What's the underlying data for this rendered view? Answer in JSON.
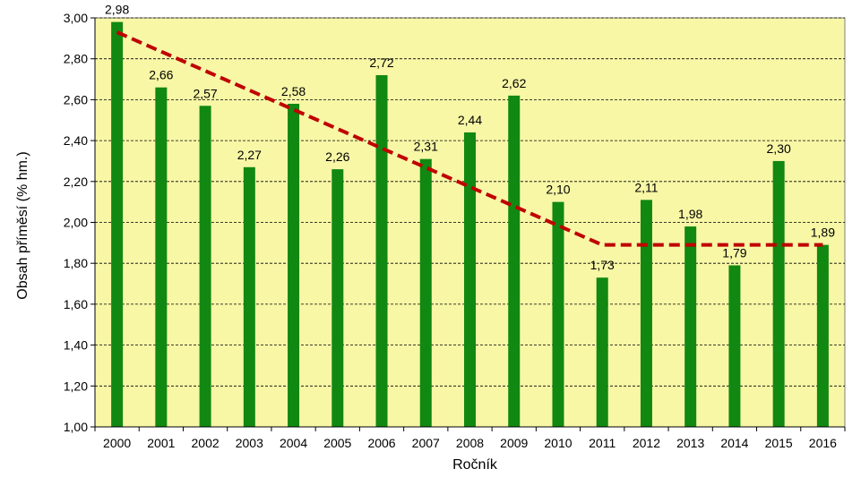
{
  "chart_data": {
    "type": "bar",
    "title": "",
    "xlabel": "Ročník",
    "ylabel": "Obsah příměsí (% hm.)",
    "ylim": [
      1.0,
      3.0
    ],
    "ytick_step": 0.2,
    "ytick_labels": [
      "1,00",
      "1,20",
      "1,40",
      "1,60",
      "1,80",
      "2,00",
      "2,20",
      "2,40",
      "2,60",
      "2,80",
      "3,00"
    ],
    "grid": "horizontal dashed",
    "categories": [
      "2000",
      "2001",
      "2002",
      "2003",
      "2004",
      "2005",
      "2006",
      "2007",
      "2008",
      "2009",
      "2010",
      "2011",
      "2012",
      "2013",
      "2014",
      "2015",
      "2016"
    ],
    "values": [
      2.98,
      2.66,
      2.57,
      2.27,
      2.58,
      2.26,
      2.72,
      2.31,
      2.44,
      2.62,
      2.1,
      1.73,
      2.11,
      1.98,
      1.79,
      2.3,
      1.89
    ],
    "data_labels": [
      "2,98",
      "2,66",
      "2,57",
      "2,27",
      "2,58",
      "2,26",
      "2,72",
      "2,31",
      "2,44",
      "2,62",
      "2,10",
      "1,73",
      "2,11",
      "1,98",
      "1,79",
      "2,30",
      "1,89"
    ],
    "trend_line": {
      "style": "dashed",
      "points": [
        {
          "x": "2000",
          "y": 2.93
        },
        {
          "x": "2011",
          "y": 1.89
        },
        {
          "x": "2016",
          "y": 1.89
        }
      ]
    },
    "colors": {
      "bar": "#118811",
      "trend": "#c00000",
      "plot_background": "#f7f7a6",
      "grid": "#000000"
    }
  }
}
